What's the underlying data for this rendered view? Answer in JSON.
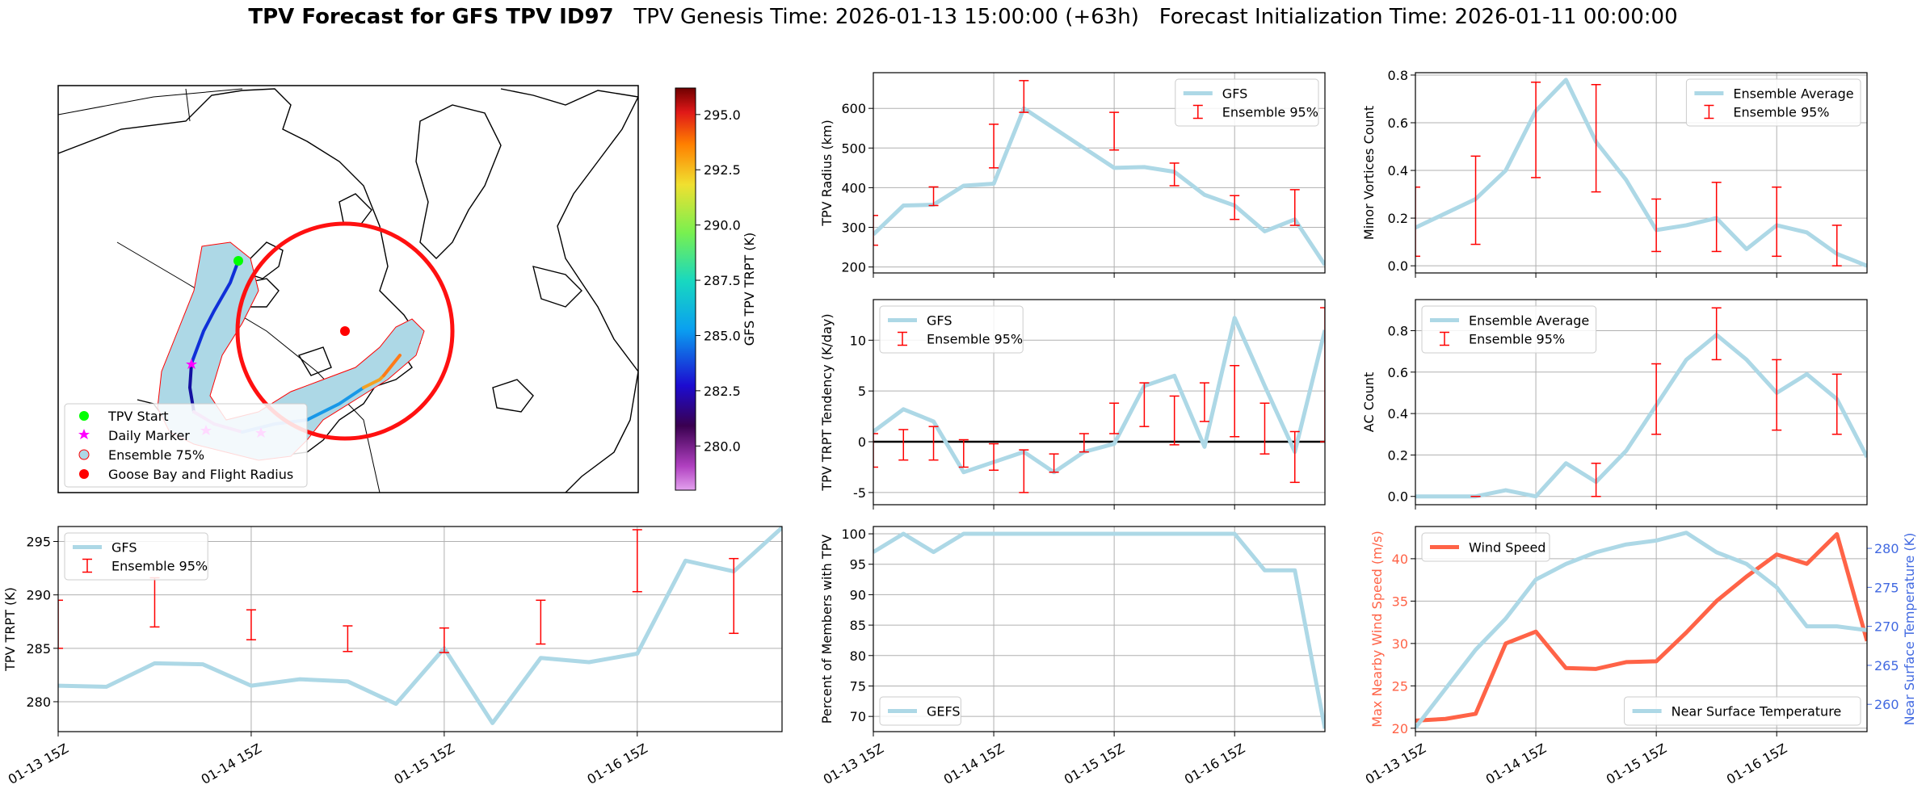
{
  "title": {
    "bold": "TPV Forecast for GFS TPV ID97",
    "genesis": "TPV Genesis Time: 2026-01-13 15:00:00 (+63h)",
    "init": "Forecast Initialization Time: 2026-01-11 00:00:00"
  },
  "colors": {
    "gfs": "#add8e6",
    "ensemble": "#ff0000",
    "wind": "#ff6347",
    "temp": "#4169e1",
    "zero_line": "#000000"
  },
  "map": {
    "legend": [
      {
        "label": "TPV Start",
        "marker": "circle",
        "color": "#00ff00"
      },
      {
        "label": "Daily Marker",
        "marker": "star",
        "color": "#ff00ff"
      },
      {
        "label": "Ensemble 75%",
        "marker": "circle-outline",
        "color": "#add8e6"
      },
      {
        "label": "Goose Bay and Flight Radius",
        "marker": "circle",
        "color": "#ff0000"
      }
    ],
    "colorbar": {
      "label": "GFS TPV TRPT (K)",
      "ticks": [
        "295.0",
        "292.5",
        "290.0",
        "287.5",
        "285.0",
        "282.5",
        "280.0"
      ],
      "tick_values": [
        295.0,
        292.5,
        290.0,
        287.5,
        285.0,
        282.5,
        280.0
      ],
      "range": [
        278.0,
        296.2
      ]
    }
  },
  "x_time_ticks": [
    "01-13 15Z",
    "01-14 15Z",
    "01-15 15Z",
    "01-16 15Z"
  ],
  "chart_data": [
    {
      "id": "radius",
      "type": "line",
      "ylabel": "TPV Radius (km)",
      "ylim": [
        185,
        690
      ],
      "yticks": [
        200,
        300,
        400,
        500,
        600
      ],
      "grid": true,
      "legend": "top-right",
      "x": [
        0,
        1,
        2,
        3,
        4,
        5,
        6,
        7,
        8,
        9,
        10,
        11,
        12,
        13,
        14,
        15
      ],
      "series": [
        {
          "name": "GFS",
          "values": [
            282,
            355,
            357,
            405,
            410,
            600,
            550,
            500,
            450,
            452,
            440,
            382,
            355,
            290,
            320,
            205
          ]
        }
      ],
      "errorbars": {
        "name": "Ensemble 95%",
        "x": [
          0,
          2,
          4,
          5,
          8,
          10,
          12,
          14
        ],
        "low": [
          255,
          355,
          450,
          590,
          495,
          405,
          320,
          305
        ],
        "high": [
          330,
          402,
          560,
          670,
          590,
          462,
          380,
          395
        ]
      }
    },
    {
      "id": "minor",
      "type": "line",
      "ylabel": "Minor Vortices Count",
      "ylim": [
        -0.03,
        0.81
      ],
      "yticks": [
        0.0,
        0.2,
        0.4,
        0.6,
        0.8
      ],
      "grid": true,
      "legend": "top-right",
      "x": [
        0,
        1,
        2,
        3,
        4,
        5,
        6,
        7,
        8,
        9,
        10,
        11,
        12,
        13,
        14,
        15
      ],
      "series": [
        {
          "name": "Ensemble Average",
          "values": [
            0.16,
            0.22,
            0.28,
            0.4,
            0.65,
            0.78,
            0.52,
            0.36,
            0.15,
            0.17,
            0.2,
            0.07,
            0.17,
            0.14,
            0.05,
            0.0
          ]
        }
      ],
      "errorbars": {
        "name": "Ensemble 95%",
        "x": [
          0,
          2,
          4,
          6,
          8,
          10,
          12,
          14
        ],
        "low": [
          0.04,
          0.09,
          0.37,
          0.31,
          0.06,
          0.06,
          0.04,
          0.0
        ],
        "high": [
          0.33,
          0.46,
          0.77,
          0.76,
          0.28,
          0.35,
          0.33,
          0.17
        ]
      }
    },
    {
      "id": "tendency",
      "type": "line",
      "ylabel": "TPV TRPT Tendency (K/day)",
      "ylim": [
        -6.2,
        14.0
      ],
      "yticks": [
        -5,
        0,
        5,
        10
      ],
      "grid": true,
      "zero_line": true,
      "legend": "top-left",
      "x": [
        0,
        1,
        2,
        3,
        4,
        5,
        6,
        7,
        8,
        9,
        10,
        11,
        12,
        13,
        14,
        15
      ],
      "series": [
        {
          "name": "GFS",
          "values": [
            1.0,
            3.2,
            2.0,
            -3.0,
            -2.0,
            -1.0,
            -3.0,
            -1.0,
            -0.2,
            5.5,
            6.5,
            -0.5,
            12.2,
            5.5,
            -1.0,
            11.0
          ]
        }
      ],
      "errorbars": {
        "name": "Ensemble 95%",
        "x": [
          0,
          1,
          2,
          3,
          4,
          5,
          6,
          7,
          8,
          9,
          10,
          11,
          12,
          13,
          14,
          15
        ],
        "low": [
          -2.5,
          -1.8,
          -1.8,
          -2.5,
          -2.8,
          -5.0,
          -3.0,
          -1.0,
          0.8,
          1.5,
          -0.3,
          2.0,
          0.5,
          -1.2,
          -4.0,
          0.0
        ],
        "high": [
          0.8,
          1.2,
          1.5,
          0.2,
          -0.2,
          -0.8,
          -1.2,
          0.8,
          3.8,
          5.8,
          4.5,
          5.8,
          7.5,
          3.8,
          1.0,
          13.2
        ]
      }
    },
    {
      "id": "ac",
      "type": "line",
      "ylabel": "AC Count",
      "ylim": [
        -0.04,
        0.95
      ],
      "yticks": [
        0.0,
        0.2,
        0.4,
        0.6,
        0.8
      ],
      "grid": true,
      "legend": "top-left",
      "x": [
        0,
        1,
        2,
        3,
        4,
        5,
        6,
        7,
        8,
        9,
        10,
        11,
        12,
        13,
        14,
        15
      ],
      "series": [
        {
          "name": "Ensemble Average",
          "values": [
            0.0,
            0.0,
            0.0,
            0.03,
            0.0,
            0.16,
            0.07,
            0.22,
            0.44,
            0.66,
            0.78,
            0.66,
            0.5,
            0.59,
            0.47,
            0.19
          ]
        }
      ],
      "errorbars": {
        "name": "Ensemble 95%",
        "x": [
          2,
          6,
          8,
          10,
          12,
          14
        ],
        "low": [
          0.0,
          0.0,
          0.3,
          0.66,
          0.32,
          0.3
        ],
        "high": [
          0.0,
          0.16,
          0.64,
          0.91,
          0.66,
          0.59
        ]
      }
    },
    {
      "id": "trpt",
      "type": "line",
      "ylabel": "TPV TRPT (K)",
      "ylim": [
        277.2,
        296.4
      ],
      "yticks": [
        280,
        285,
        290,
        295
      ],
      "grid": true,
      "legend": "top-left",
      "x": [
        0,
        1,
        2,
        3,
        4,
        5,
        6,
        7,
        8,
        9,
        10,
        11,
        12,
        13,
        14,
        15
      ],
      "series": [
        {
          "name": "GFS",
          "values": [
            281.5,
            281.4,
            283.6,
            283.5,
            281.5,
            282.1,
            281.9,
            279.8,
            285.0,
            278.0,
            284.1,
            283.7,
            284.5,
            293.2,
            292.2,
            296.3
          ]
        }
      ],
      "errorbars": {
        "name": "Ensemble 95%",
        "x": [
          0,
          2,
          4,
          6,
          8,
          10,
          12,
          14
        ],
        "low": [
          285.0,
          287.0,
          285.8,
          284.7,
          284.6,
          285.4,
          290.3,
          286.4
        ],
        "high": [
          289.5,
          291.6,
          288.6,
          287.1,
          286.9,
          289.5,
          296.1,
          293.4
        ]
      }
    },
    {
      "id": "percent",
      "type": "line",
      "ylabel": "Percent of Members with TPV",
      "ylim": [
        67.5,
        101.2
      ],
      "yticks": [
        70,
        75,
        80,
        85,
        90,
        95,
        100
      ],
      "grid": true,
      "legend": "bottom-left",
      "x": [
        0,
        1,
        2,
        3,
        4,
        5,
        6,
        7,
        8,
        9,
        10,
        11,
        12,
        13,
        14,
        15
      ],
      "series": [
        {
          "name": "GEFS",
          "values": [
            97,
            100,
            97,
            100,
            100,
            100,
            100,
            100,
            100,
            100,
            100,
            100,
            100,
            94,
            94,
            68
          ]
        }
      ]
    },
    {
      "id": "wind_temp",
      "type": "line",
      "ylabel": "Max Nearby Wind Speed (m/s)",
      "ylabel_right": "Near Surface Temperature (K)",
      "ylim": [
        19.6,
        43.8
      ],
      "yticks": [
        20,
        25,
        30,
        35,
        40
      ],
      "ylim_right": [
        256.5,
        282.8
      ],
      "yticks_right": [
        260,
        265,
        270,
        275,
        280
      ],
      "grid": true,
      "x": [
        0,
        1,
        2,
        3,
        4,
        5,
        6,
        7,
        8,
        9,
        10,
        11,
        12,
        13,
        14,
        15
      ],
      "series": [
        {
          "name": "Wind Speed",
          "axis": "left",
          "legend": "top-left",
          "values": [
            20.9,
            21.1,
            21.7,
            30.0,
            31.4,
            27.1,
            27.0,
            27.8,
            27.9,
            31.3,
            35.0,
            37.9,
            40.5,
            39.4,
            42.9,
            30.3
          ]
        },
        {
          "name": "Near Surface Temperature",
          "axis": "right",
          "legend": "bottom-right",
          "values": [
            257.0,
            262.0,
            267.0,
            271.0,
            276.0,
            278.0,
            279.5,
            280.5,
            281.0,
            282.0,
            279.5,
            278.0,
            275.0,
            270.0,
            270.0,
            269.5
          ]
        }
      ]
    }
  ]
}
